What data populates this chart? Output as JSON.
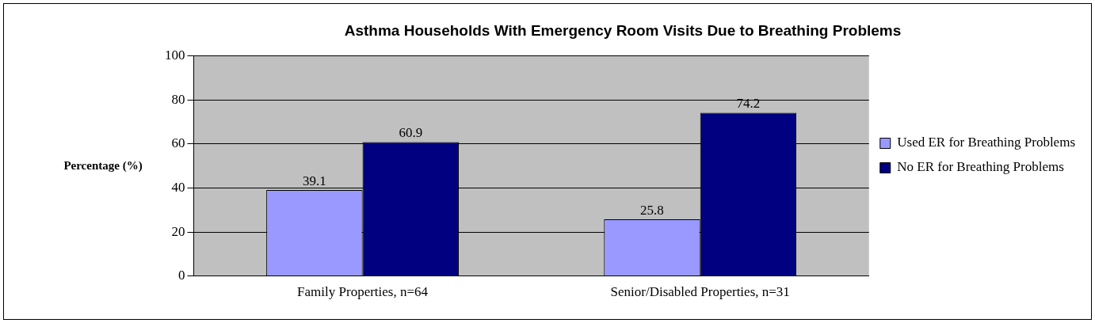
{
  "chart_data": {
    "type": "bar",
    "title": "Asthma Households With Emergency Room Visits Due to Breathing Problems",
    "ylabel": "Percentage (%)",
    "categories": [
      "Family Properties, n=64",
      "Senior/Disabled Properties, n=31"
    ],
    "series": [
      {
        "name": "Used ER for Breathing Problems",
        "color": "#9999ff",
        "values": [
          39.1,
          25.8
        ]
      },
      {
        "name": "No ER for Breathing Problems",
        "color": "#000080",
        "values": [
          60.9,
          74.2
        ]
      }
    ],
    "ylim": [
      0,
      100
    ],
    "yticks": [
      0,
      20,
      40,
      60,
      80,
      100
    ],
    "grid": "y",
    "legend": "right",
    "data_labels": true
  }
}
